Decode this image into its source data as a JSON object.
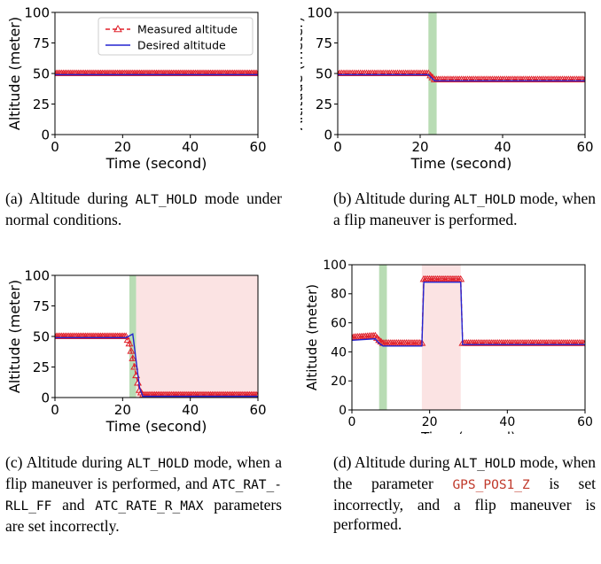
{
  "chart_data": [
    {
      "id": "a",
      "type": "line",
      "xlabel": "Time (second)",
      "ylabel": "Altitude (meter)",
      "xlim": [
        0,
        60
      ],
      "ylim": [
        0,
        100
      ],
      "xticks": [
        0,
        20,
        40,
        60
      ],
      "yticks": [
        0,
        25,
        50,
        75,
        100
      ],
      "grid": false,
      "legend": "top-right",
      "series": [
        {
          "name": "Measured altitude",
          "style": "dashed-triangle",
          "color": "#e0202a",
          "x": [
            0,
            60
          ],
          "y": [
            50,
            50
          ]
        },
        {
          "name": "Desired altitude",
          "style": "solid",
          "color": "#2424d0",
          "x": [
            0,
            60
          ],
          "y": [
            49,
            49
          ]
        }
      ],
      "spans": []
    },
    {
      "id": "b",
      "type": "line",
      "xlabel": "Time (second)",
      "ylabel": "Altitude (meter)",
      "xlim": [
        0,
        60
      ],
      "ylim": [
        0,
        100
      ],
      "xticks": [
        0,
        20,
        40,
        60
      ],
      "yticks": [
        0,
        25,
        50,
        75,
        100
      ],
      "grid": false,
      "series": [
        {
          "style": "dashed-triangle",
          "color": "#e0202a",
          "x": [
            0,
            22,
            23.5,
            60
          ],
          "y": [
            50,
            50,
            45,
            45
          ]
        },
        {
          "style": "solid",
          "color": "#2424d0",
          "x": [
            0,
            22,
            23.5,
            60
          ],
          "y": [
            49,
            49,
            44,
            44
          ]
        }
      ],
      "spans": [
        {
          "x0": 22,
          "x1": 24,
          "color": "#b8dcb4"
        }
      ]
    },
    {
      "id": "c",
      "type": "line",
      "xlabel": "Time (second)",
      "ylabel": "Altitude (meter)",
      "xlim": [
        0,
        60
      ],
      "ylim": [
        0,
        100
      ],
      "xticks": [
        0,
        20,
        40,
        60
      ],
      "yticks": [
        0,
        25,
        50,
        75,
        100
      ],
      "grid": false,
      "series": [
        {
          "style": "dashed-triangle",
          "color": "#e0202a",
          "x": [
            0,
            21,
            22,
            23,
            24,
            25,
            26,
            60
          ],
          "y": [
            50,
            50,
            44,
            32,
            18,
            6,
            2,
            2
          ]
        },
        {
          "style": "solid",
          "color": "#2424d0",
          "x": [
            0,
            21,
            23,
            25,
            26,
            60
          ],
          "y": [
            49,
            49,
            52,
            8,
            1,
            1
          ]
        }
      ],
      "spans": [
        {
          "x0": 22,
          "x1": 24,
          "color": "#b8dcb4"
        },
        {
          "x0": 24,
          "x1": 60,
          "color": "#fbe3e3"
        }
      ]
    },
    {
      "id": "d",
      "type": "line",
      "xlabel": "Time (second)",
      "ylabel": "Altitude (meter)",
      "xlim": [
        0,
        60
      ],
      "ylim": [
        0,
        100
      ],
      "xticks": [
        0,
        20,
        40,
        60
      ],
      "yticks": [
        0,
        20,
        40,
        60,
        80,
        100
      ],
      "grid": false,
      "series": [
        {
          "style": "dashed-triangle",
          "color": "#e0202a",
          "x": [
            0,
            6,
            7,
            8,
            18,
            18.5,
            28,
            28.5,
            60
          ],
          "y": [
            50,
            51,
            48,
            46,
            46,
            90,
            90,
            46,
            46
          ]
        },
        {
          "style": "solid",
          "color": "#2424d0",
          "x": [
            0,
            6,
            7,
            8,
            18,
            18.5,
            28,
            28.5,
            60
          ],
          "y": [
            48,
            49,
            46,
            44,
            44,
            88,
            88,
            45,
            45
          ]
        }
      ],
      "spans": [
        {
          "x0": 7,
          "x1": 9,
          "color": "#b8dcb4"
        },
        {
          "x0": 18,
          "x1": 28,
          "color": "#fbe3e3"
        }
      ]
    }
  ],
  "captions": {
    "a": {
      "pre": "(a) Altitude during ",
      "code": "ALT_HOLD",
      "post": " mode under normal conditions."
    },
    "b": {
      "pre": "(b) Altitude during ",
      "code": "ALT_HOLD",
      "post": " mode, when a flip maneuver is performed."
    },
    "c": {
      "pre": "(c) Altitude during ",
      "code": "ALT_HOLD",
      "mid1": " mode, when a flip maneuver is performed, and ",
      "code2": "ATC_RAT_-RLL_FF",
      "mid2": " and ",
      "code3": "ATC_RATE_R_MAX",
      "post": " parameters are set incorrectly."
    },
    "d": {
      "pre": "(d) Altitude during ",
      "code": "ALT_HOLD",
      "mid1": " mode, when the parameter ",
      "code2": "GPS_POS1_Z",
      "post": " is set incorrectly, and a flip maneuver is performed."
    }
  }
}
